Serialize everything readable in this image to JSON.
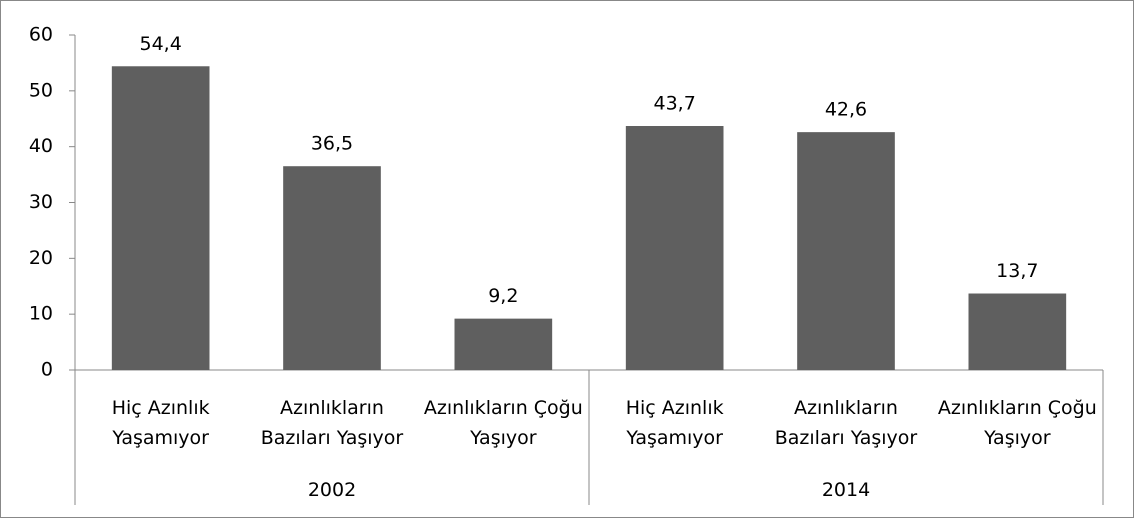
{
  "chart_data": {
    "type": "bar",
    "categories": [
      "Hiç Azınlık Yaşamıyor",
      "Azınlıkların Bazıları Yaşıyor",
      "Azınlıkların Çoğu Yaşıyor",
      "Hiç Azınlık Yaşamıyor",
      "Azınlıkların Bazıları Yaşıyor",
      "Azınlıkların Çoğu Yaşıyor"
    ],
    "groups": [
      "2002",
      "2014"
    ],
    "values": [
      54.4,
      36.5,
      9.2,
      43.7,
      42.6,
      13.7
    ],
    "value_labels": [
      "54,4",
      "36,5",
      "9,2",
      "43,7",
      "42,6",
      "13,7"
    ],
    "color": "#5f5f5f",
    "ylim": [
      0,
      60
    ],
    "yticks": [
      0,
      10,
      20,
      30,
      40,
      50,
      60
    ],
    "grid": false
  }
}
